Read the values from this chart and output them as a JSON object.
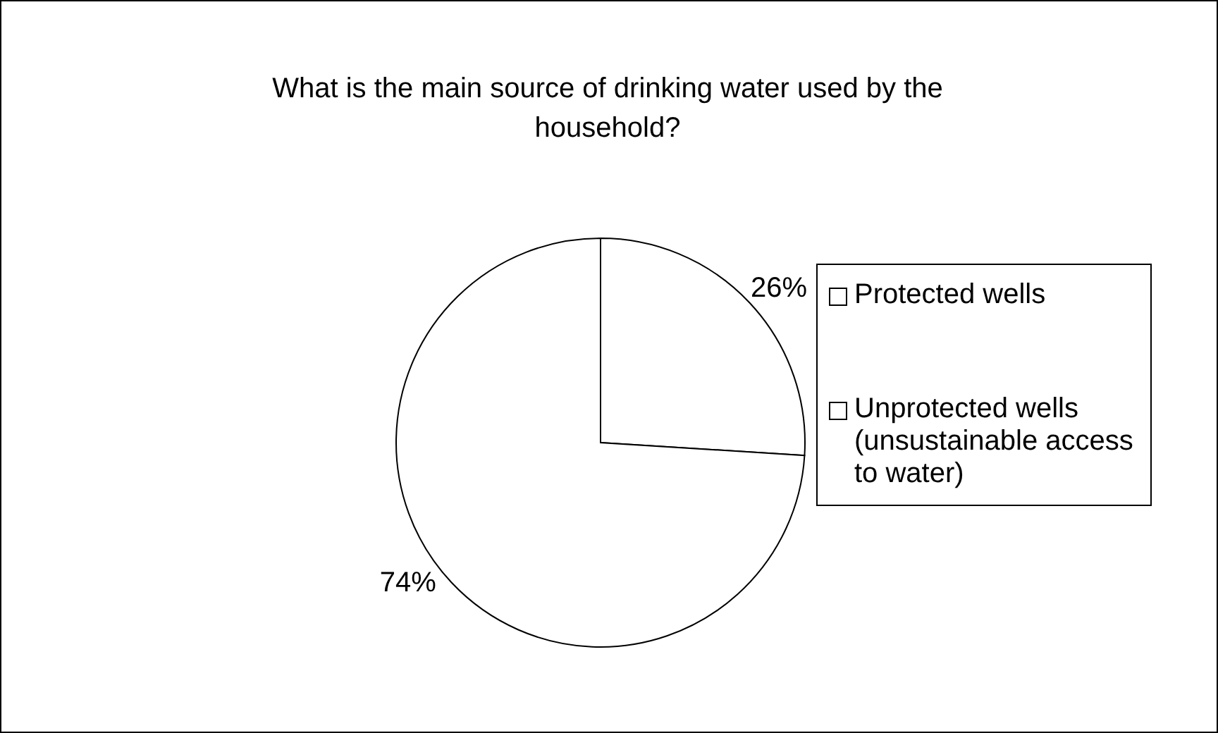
{
  "chart_data": {
    "type": "pie",
    "title": "What is the main source of drinking water used by the household?",
    "categories": [
      "Protected wells",
      "Unprotected wells (unsustainable access to water)"
    ],
    "values": [
      26,
      74
    ],
    "colors": [
      "#ffffff",
      "#ffffff"
    ],
    "value_labels": [
      "26%",
      "74%"
    ],
    "legend": "right"
  }
}
